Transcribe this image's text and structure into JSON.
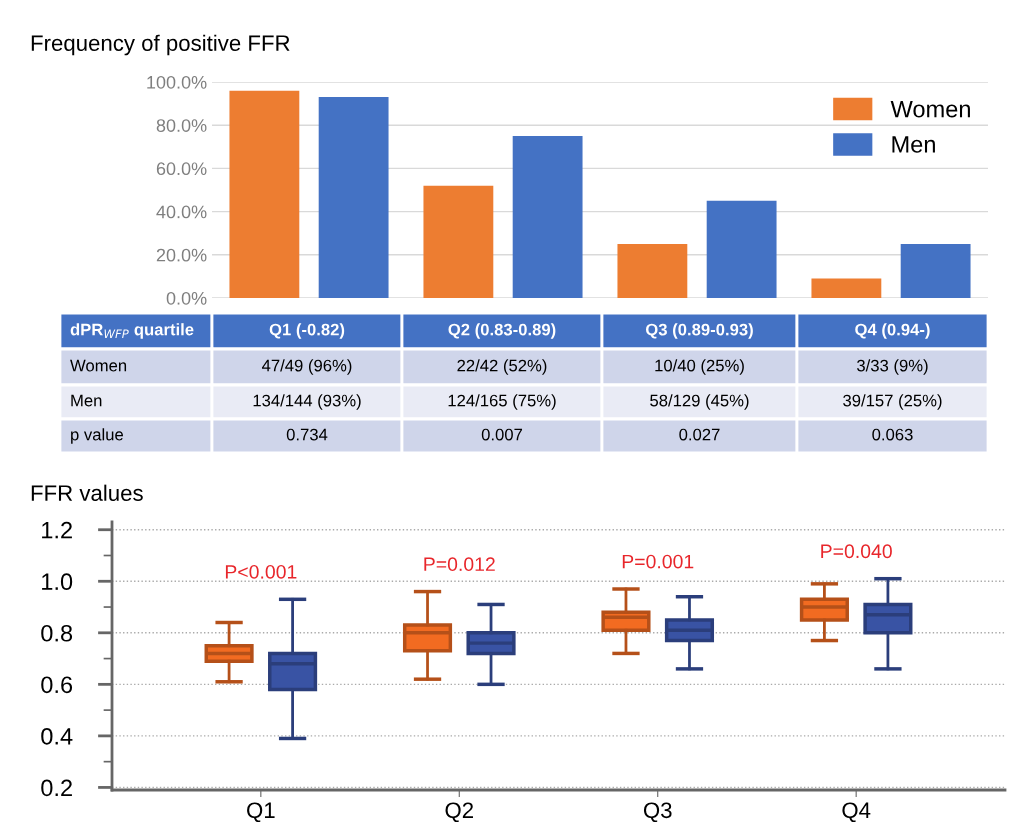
{
  "chart_data": [
    {
      "type": "bar",
      "title": "Frequency of positive FFR",
      "xlabel": "dPR$_{WFP}$ quartile",
      "categories": [
        "Q1 (-0.82)",
        "Q2 (0.83-0.89)",
        "Q3 (0.89-0.93)",
        "Q4 (0.94-)"
      ],
      "series": [
        {
          "name": "Women",
          "color": "#ed7d31",
          "values": [
            96,
            52,
            25,
            9
          ],
          "value_labels": [
            "47/49 (96%)",
            "22/42 (52%)",
            "10/40 (25%)",
            "3/33 (9%)"
          ]
        },
        {
          "name": "Men",
          "color": "#4472c4",
          "values": [
            93,
            75,
            45,
            25
          ],
          "value_labels": [
            "134/144 (93%)",
            "124/165 (75%)",
            "58/129 (45%)",
            "39/157 (25%)"
          ]
        }
      ],
      "annotations": [
        "p value",
        "0.734",
        "0.007",
        "0.027",
        "0.063"
      ],
      "ylim": [
        0,
        100
      ],
      "yticks": [
        {
          "value": 0,
          "label": "0.0%"
        },
        {
          "value": 20,
          "label": "20.0%"
        },
        {
          "value": 40,
          "label": "40.0%"
        },
        {
          "value": 60,
          "label": "60.0%"
        },
        {
          "value": 80,
          "label": "80.0%"
        },
        {
          "value": 100,
          "label": "100.0%"
        }
      ],
      "grid": "y",
      "legend": "top right"
    },
    {
      "type": "box",
      "title": "FFR values",
      "categories": [
        "Q1",
        "Q2",
        "Q3",
        "Q4"
      ],
      "series": [
        {
          "color": "#f26b21",
          "boxes": [
            {
              "low": 0.61,
              "q1": 0.69,
              "median": 0.72,
              "q3": 0.75,
              "high": 0.84
            },
            {
              "low": 0.62,
              "q1": 0.73,
              "median": 0.8,
              "q3": 0.83,
              "high": 0.96
            },
            {
              "low": 0.72,
              "q1": 0.81,
              "median": 0.86,
              "q3": 0.88,
              "high": 0.97
            },
            {
              "low": 0.77,
              "q1": 0.85,
              "median": 0.9,
              "q3": 0.93,
              "high": 0.99
            }
          ]
        },
        {
          "color": "#3953a4",
          "boxes": [
            {
              "low": 0.39,
              "q1": 0.58,
              "median": 0.68,
              "q3": 0.72,
              "high": 0.93
            },
            {
              "low": 0.6,
              "q1": 0.72,
              "median": 0.76,
              "q3": 0.8,
              "high": 0.91
            },
            {
              "low": 0.66,
              "q1": 0.77,
              "median": 0.81,
              "q3": 0.85,
              "high": 0.94
            },
            {
              "low": 0.66,
              "q1": 0.8,
              "median": 0.87,
              "q3": 0.91,
              "high": 1.01
            }
          ]
        }
      ],
      "annotations": [
        "P<0.001",
        "P=0.012",
        "P=0.001",
        "P=0.040"
      ],
      "ylim": [
        0.19,
        1.23
      ],
      "yticks": [
        {
          "value": 0.2,
          "label": "0.2"
        },
        {
          "value": 0.4,
          "label": "0.4"
        },
        {
          "value": 0.6,
          "label": "0.6"
        },
        {
          "value": 0.8,
          "label": "0.8"
        },
        {
          "value": 1.0,
          "label": "1.0"
        },
        {
          "value": 1.2,
          "label": "1.2"
        }
      ],
      "grid": "y"
    }
  ]
}
